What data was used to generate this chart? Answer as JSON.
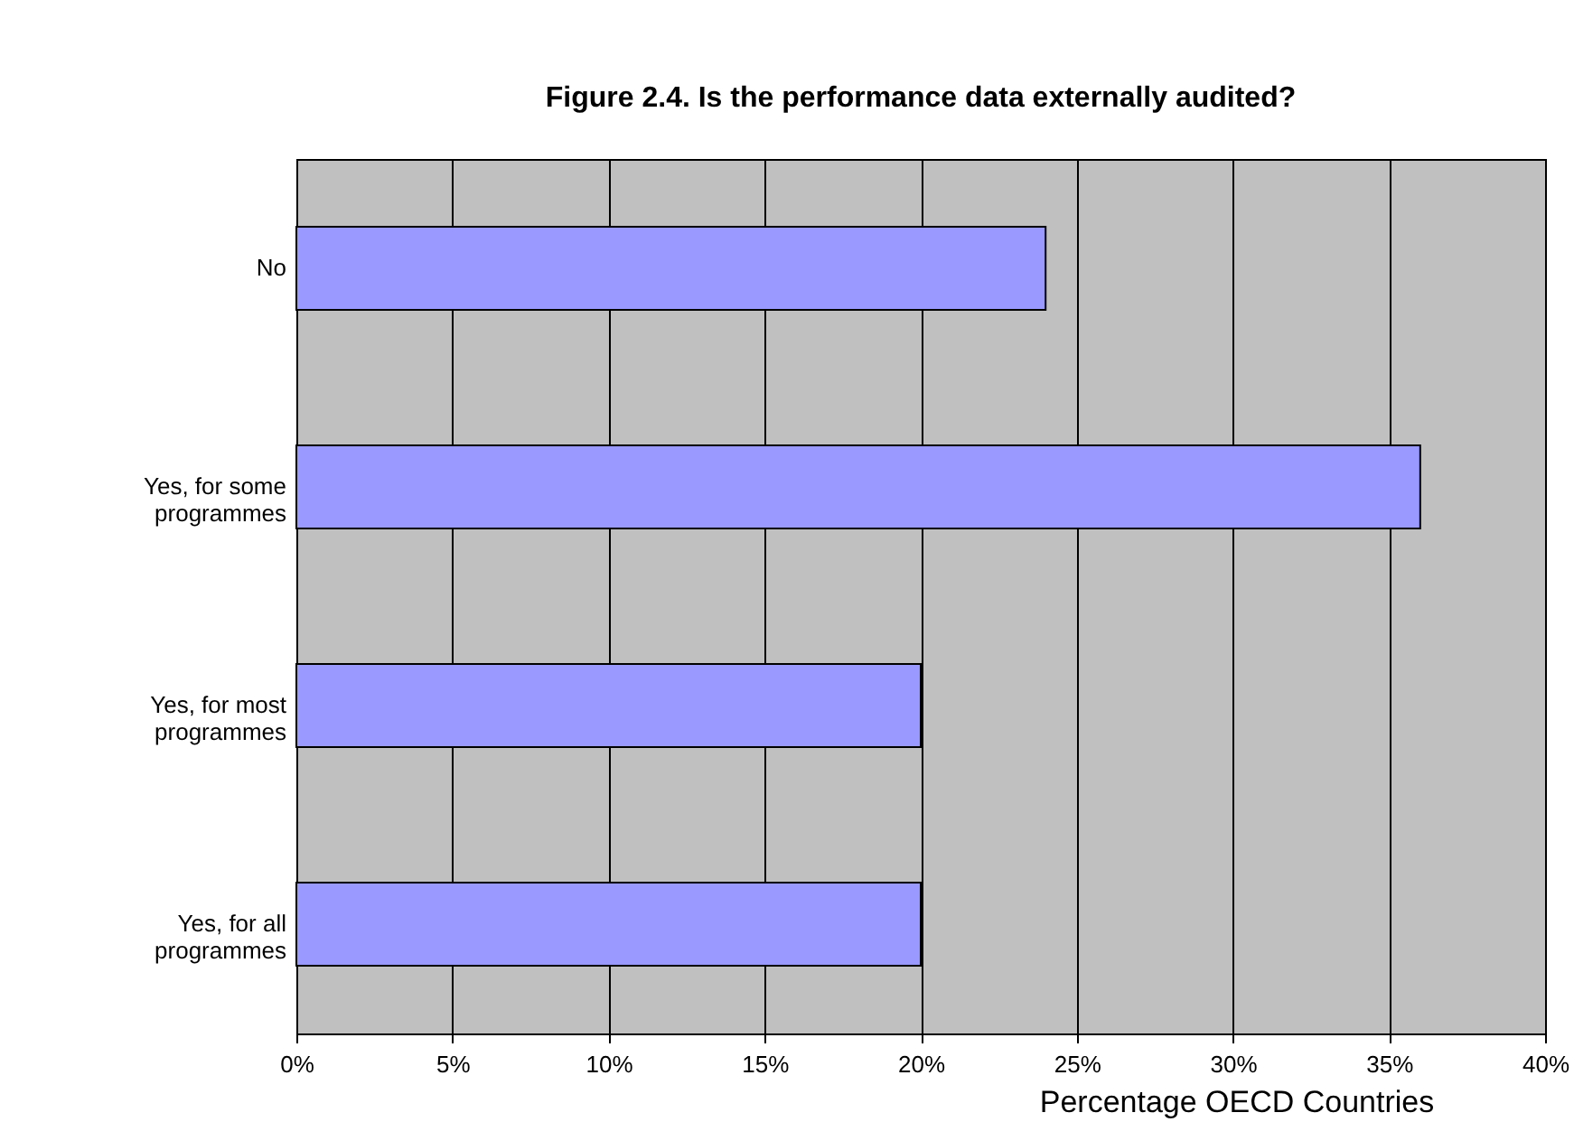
{
  "chart_data": {
    "type": "bar",
    "orientation": "horizontal",
    "title": "Figure 2.4.      Is the performance data externally audited?",
    "xlabel": "Percentage OECD Countries",
    "categories": [
      "No",
      "Yes, for some programmes",
      "Yes, for most programmes",
      "Yes, for all programmes"
    ],
    "values": [
      24,
      36,
      20,
      20
    ],
    "color": "#9999ff",
    "xlim": [
      0,
      40
    ],
    "xticks": [
      {
        "value": 0,
        "label": "0%"
      },
      {
        "value": 5,
        "label": "5%"
      },
      {
        "value": 10,
        "label": "10%"
      },
      {
        "value": 15,
        "label": "15%"
      },
      {
        "value": 20,
        "label": "20%"
      },
      {
        "value": 25,
        "label": "25%"
      },
      {
        "value": 30,
        "label": "30%"
      },
      {
        "value": 35,
        "label": "35%"
      },
      {
        "value": 40,
        "label": "40%"
      }
    ],
    "grid": "x"
  }
}
